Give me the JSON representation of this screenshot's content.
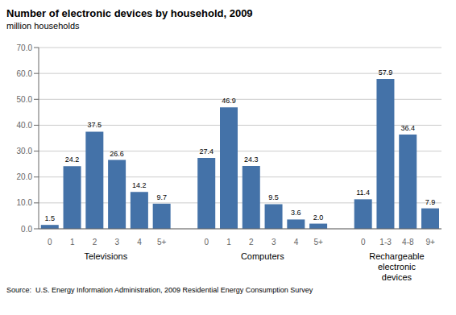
{
  "chart_data": {
    "type": "bar",
    "title": "Number of electronic devices by household, 2009",
    "subtitle": "million households",
    "source": "Source:  U.S. Energy Information Administration, 2009 Residential Energy Consumption Survey",
    "color": "#4472a8",
    "ylim": [
      0,
      70.0
    ],
    "yticks": [
      {
        "value": 0,
        "label": "0.0"
      },
      {
        "value": 10,
        "label": "10.0"
      },
      {
        "value": 20,
        "label": "20.0"
      },
      {
        "value": 30,
        "label": "30.0"
      },
      {
        "value": 40,
        "label": "40.0"
      },
      {
        "value": 50,
        "label": "50.0"
      },
      {
        "value": 60,
        "label": "60.0"
      },
      {
        "value": 70,
        "label": "70.0"
      }
    ],
    "grid": true,
    "data_labels": true,
    "groups": [
      {
        "label": "Televisions",
        "categories": [
          "0",
          "1",
          "2",
          "3",
          "4",
          "5+"
        ],
        "values": [
          1.5,
          24.2,
          37.5,
          26.6,
          14.2,
          9.7
        ],
        "value_labels": [
          "1.5",
          "24.2",
          "37.5",
          "26.6",
          "14.2",
          "9.7"
        ]
      },
      {
        "label": "Computers",
        "categories": [
          "0",
          "1",
          "2",
          "3",
          "4",
          "5+"
        ],
        "values": [
          27.4,
          46.9,
          24.3,
          9.5,
          3.6,
          2.0
        ],
        "value_labels": [
          "27.4",
          "46.9",
          "24.3",
          "9.5",
          "3.6",
          "2.0"
        ]
      },
      {
        "label": "Rechargeable\nelectronic\ndevices",
        "categories": [
          "0",
          "1-3",
          "4-8",
          "9+"
        ],
        "values": [
          11.4,
          57.9,
          36.4,
          7.9
        ],
        "value_labels": [
          "11.4",
          "57.9",
          "36.4",
          "7.9"
        ]
      }
    ]
  }
}
